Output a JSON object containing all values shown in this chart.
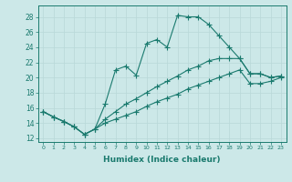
{
  "title": "",
  "xlabel": "Humidex (Indice chaleur)",
  "ylabel": "",
  "xlim": [
    -0.5,
    23.5
  ],
  "ylim": [
    11.5,
    29.5
  ],
  "xticks": [
    0,
    1,
    2,
    3,
    4,
    5,
    6,
    7,
    8,
    9,
    10,
    11,
    12,
    13,
    14,
    15,
    16,
    17,
    18,
    19,
    20,
    21,
    22,
    23
  ],
  "yticks": [
    12,
    14,
    16,
    18,
    20,
    22,
    24,
    26,
    28
  ],
  "bg_color": "#cce8e8",
  "line_color": "#1a7a6e",
  "grid_color": "#b8d8d8",
  "line1_x": [
    0,
    1,
    2,
    3,
    4,
    5,
    6,
    7,
    8,
    9,
    10,
    11,
    12,
    13,
    14,
    15,
    16,
    17,
    18,
    19,
    20,
    21,
    22,
    23
  ],
  "line1_y": [
    15.5,
    14.8,
    14.2,
    13.5,
    12.5,
    13.2,
    16.5,
    21.0,
    21.5,
    20.3,
    24.5,
    25.0,
    24.0,
    28.2,
    28.0,
    28.0,
    27.0,
    25.5,
    24.0,
    22.5,
    20.5,
    20.5,
    20.0,
    20.2
  ],
  "line2_x": [
    0,
    1,
    2,
    3,
    4,
    5,
    6,
    7,
    8,
    9,
    10,
    11,
    12,
    13,
    14,
    15,
    16,
    17,
    18,
    19,
    20,
    21,
    22,
    23
  ],
  "line2_y": [
    15.5,
    14.8,
    14.2,
    13.5,
    12.5,
    13.2,
    14.5,
    15.5,
    16.5,
    17.2,
    18.0,
    18.8,
    19.5,
    20.2,
    21.0,
    21.5,
    22.2,
    22.5,
    22.5,
    22.5,
    20.5,
    20.5,
    20.0,
    20.2
  ],
  "line3_x": [
    0,
    1,
    2,
    3,
    4,
    5,
    6,
    7,
    8,
    9,
    10,
    11,
    12,
    13,
    14,
    15,
    16,
    17,
    18,
    19,
    20,
    21,
    22,
    23
  ],
  "line3_y": [
    15.5,
    14.8,
    14.2,
    13.5,
    12.5,
    13.2,
    14.0,
    14.5,
    15.0,
    15.5,
    16.2,
    16.8,
    17.3,
    17.8,
    18.5,
    19.0,
    19.5,
    20.0,
    20.5,
    21.0,
    19.2,
    19.2,
    19.5,
    20.0
  ]
}
